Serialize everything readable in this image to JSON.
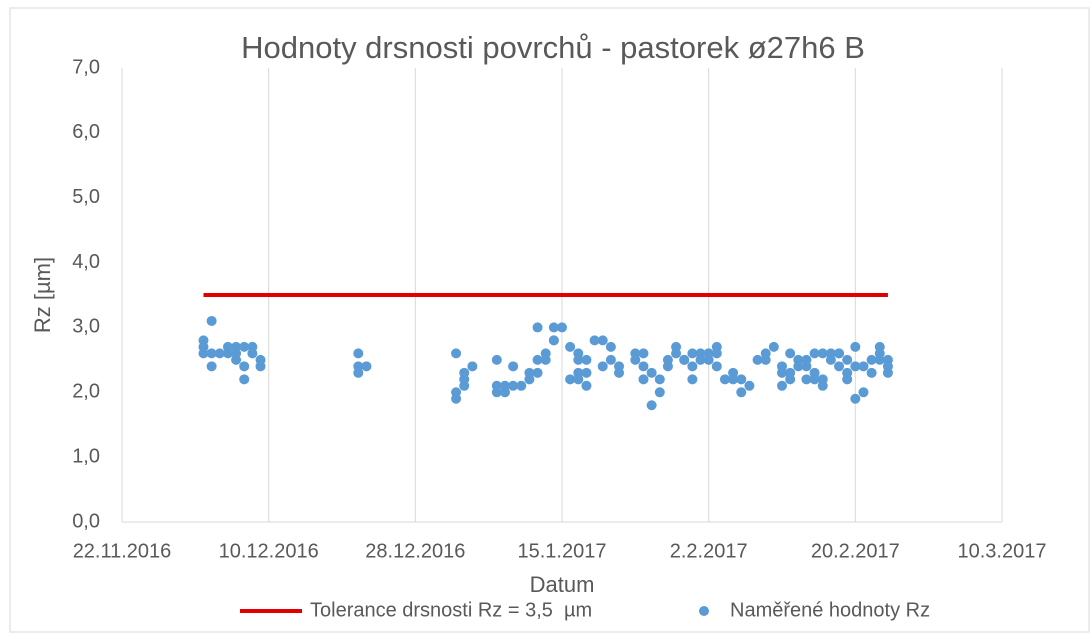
{
  "chart_data": {
    "type": "scatter",
    "title": "Hodnoty drsnosti povrchů - pastorek ø27h6 B",
    "x_label": "Datum",
    "y_label": "Rz [µm]",
    "xlim": [
      "2016-11-22",
      "2017-03-10"
    ],
    "xticks": [
      {
        "value": "2016-11-22",
        "label": "22.11.2016"
      },
      {
        "value": "2016-12-10",
        "label": "10.12.2016"
      },
      {
        "value": "2016-12-28",
        "label": "28.12.2016"
      },
      {
        "value": "2017-01-15",
        "label": "15.1.2017"
      },
      {
        "value": "2017-02-02",
        "label": "2.2.2017"
      },
      {
        "value": "2017-02-20",
        "label": "20.2.2017"
      },
      {
        "value": "2017-03-10",
        "label": "10.3.2017"
      }
    ],
    "ylim": [
      0,
      7
    ],
    "yticks": [
      {
        "value": 0,
        "label": "0,0"
      },
      {
        "value": 1,
        "label": "1,0"
      },
      {
        "value": 2,
        "label": "2,0"
      },
      {
        "value": 3,
        "label": "3,0"
      },
      {
        "value": 4,
        "label": "4,0"
      },
      {
        "value": 5,
        "label": "5,0"
      },
      {
        "value": 6,
        "label": "6,0"
      },
      {
        "value": 7,
        "label": "7,0"
      }
    ],
    "xgrid": true,
    "legend": "bottom",
    "series": [
      {
        "name": "Tolerance drsnosti Rz = 3,5  µm",
        "type": "line",
        "color": "#e00000",
        "x": [
          "2016-12-02",
          "2017-02-24"
        ],
        "values": [
          3.5,
          3.5
        ]
      },
      {
        "name": "Naměřené hodnoty Rz",
        "type": "scatter",
        "color": "#5b9bd5",
        "x": [
          "2016-12-02",
          "2016-12-02",
          "2016-12-02",
          "2016-12-03",
          "2016-12-03",
          "2016-12-03",
          "2016-12-04",
          "2016-12-05",
          "2016-12-05",
          "2016-12-06",
          "2016-12-06",
          "2016-12-06",
          "2016-12-07",
          "2016-12-07",
          "2016-12-07",
          "2016-12-08",
          "2016-12-08",
          "2016-12-09",
          "2016-12-09",
          "2016-12-21",
          "2016-12-21",
          "2016-12-21",
          "2016-12-22",
          "2017-01-02",
          "2017-01-02",
          "2017-01-02",
          "2017-01-03",
          "2017-01-03",
          "2017-01-03",
          "2017-01-04",
          "2017-01-07",
          "2017-01-07",
          "2017-01-07",
          "2017-01-08",
          "2017-01-08",
          "2017-01-09",
          "2017-01-09",
          "2017-01-10",
          "2017-01-11",
          "2017-01-11",
          "2017-01-12",
          "2017-01-12",
          "2017-01-12",
          "2017-01-13",
          "2017-01-13",
          "2017-01-14",
          "2017-01-14",
          "2017-01-14",
          "2017-01-15",
          "2017-01-16",
          "2017-01-16",
          "2017-01-17",
          "2017-01-17",
          "2017-01-17",
          "2017-01-17",
          "2017-01-18",
          "2017-01-18",
          "2017-01-18",
          "2017-01-19",
          "2017-01-20",
          "2017-01-20",
          "2017-01-21",
          "2017-01-21",
          "2017-01-22",
          "2017-01-22",
          "2017-01-24",
          "2017-01-24",
          "2017-01-25",
          "2017-01-25",
          "2017-01-25",
          "2017-01-26",
          "2017-01-26",
          "2017-01-27",
          "2017-01-27",
          "2017-01-28",
          "2017-01-28",
          "2017-01-29",
          "2017-01-29",
          "2017-01-30",
          "2017-01-30",
          "2017-01-31",
          "2017-01-31",
          "2017-01-31",
          "2017-02-01",
          "2017-02-01",
          "2017-02-02",
          "2017-02-02",
          "2017-02-02",
          "2017-02-03",
          "2017-02-03",
          "2017-02-03",
          "2017-02-04",
          "2017-02-05",
          "2017-02-05",
          "2017-02-06",
          "2017-02-06",
          "2017-02-07",
          "2017-02-08",
          "2017-02-09",
          "2017-02-09",
          "2017-02-10",
          "2017-02-11",
          "2017-02-11",
          "2017-02-11",
          "2017-02-12",
          "2017-02-12",
          "2017-02-12",
          "2017-02-13",
          "2017-02-13",
          "2017-02-14",
          "2017-02-14",
          "2017-02-14",
          "2017-02-15",
          "2017-02-15",
          "2017-02-15",
          "2017-02-16",
          "2017-02-16",
          "2017-02-16",
          "2017-02-17",
          "2017-02-17",
          "2017-02-18",
          "2017-02-18",
          "2017-02-18",
          "2017-02-19",
          "2017-02-19",
          "2017-02-19",
          "2017-02-20",
          "2017-02-20",
          "2017-02-20",
          "2017-02-21",
          "2017-02-21",
          "2017-02-22",
          "2017-02-22",
          "2017-02-23",
          "2017-02-23",
          "2017-02-23",
          "2017-02-24",
          "2017-02-24",
          "2017-02-24"
        ],
        "values": [
          2.7,
          2.6,
          2.8,
          3.1,
          2.4,
          2.6,
          2.6,
          2.7,
          2.6,
          2.5,
          2.6,
          2.7,
          2.4,
          2.2,
          2.7,
          2.7,
          2.6,
          2.5,
          2.4,
          2.3,
          2.6,
          2.4,
          2.4,
          2.6,
          1.9,
          2.0,
          2.3,
          2.2,
          2.1,
          2.4,
          2.0,
          2.5,
          2.1,
          2.0,
          2.1,
          2.1,
          2.4,
          2.1,
          2.3,
          2.2,
          2.5,
          3.0,
          2.3,
          2.5,
          2.6,
          2.8,
          2.8,
          3.0,
          3.0,
          2.7,
          2.2,
          2.5,
          2.6,
          2.3,
          2.2,
          2.1,
          2.3,
          2.5,
          2.8,
          2.8,
          2.4,
          2.7,
          2.5,
          2.3,
          2.4,
          2.5,
          2.6,
          2.4,
          2.2,
          2.6,
          2.3,
          1.8,
          2.2,
          2.0,
          2.4,
          2.5,
          2.7,
          2.6,
          2.5,
          2.5,
          2.6,
          2.4,
          2.2,
          2.6,
          2.5,
          2.6,
          2.5,
          2.6,
          2.7,
          2.6,
          2.4,
          2.2,
          2.2,
          2.3,
          2.0,
          2.2,
          2.1,
          2.5,
          2.5,
          2.6,
          2.7,
          2.1,
          2.4,
          2.3,
          2.6,
          2.2,
          2.3,
          2.4,
          2.5,
          2.5,
          2.4,
          2.2,
          2.2,
          2.6,
          2.3,
          2.1,
          2.2,
          2.6,
          2.6,
          2.5,
          2.6,
          2.4,
          2.6,
          2.3,
          2.5,
          2.2,
          2.7,
          1.9,
          2.4,
          2.0,
          2.4,
          2.5,
          2.3,
          2.5,
          2.6,
          2.7,
          2.5,
          2.4,
          2.3
        ]
      }
    ]
  }
}
